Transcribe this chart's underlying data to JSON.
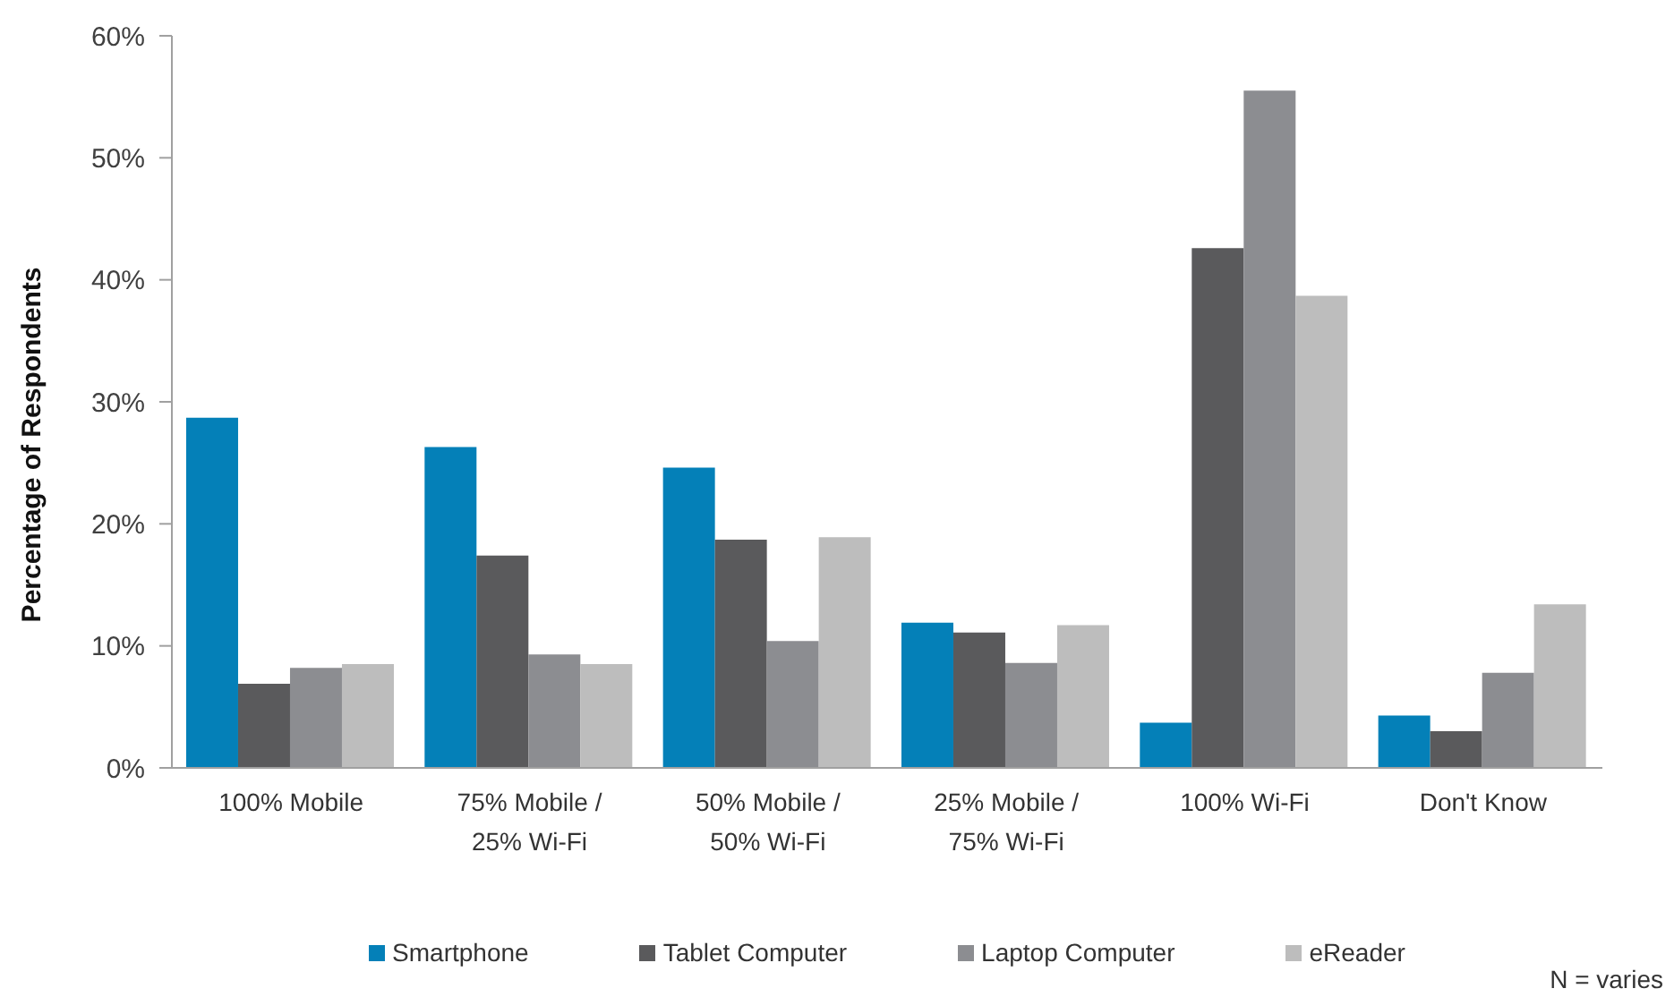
{
  "chart_data": {
    "type": "bar",
    "ylabel": "Percentage of Respondents",
    "categories": [
      "100% Mobile",
      "75% Mobile / 25% Wi-Fi",
      "50% Mobile / 50% Wi-Fi",
      "25% Mobile / 75% Wi-Fi",
      "100% Wi-Fi",
      "Don't Know"
    ],
    "series": [
      {
        "name": "Smartphone",
        "color": "#0480b8",
        "values": [
          28.7,
          26.3,
          24.6,
          11.9,
          3.7,
          4.3
        ]
      },
      {
        "name": "Tablet Computer",
        "color": "#5a5a5c",
        "values": [
          6.9,
          17.4,
          18.7,
          11.1,
          42.6,
          3.0
        ]
      },
      {
        "name": "Laptop Computer",
        "color": "#8c8d91",
        "values": [
          8.2,
          9.3,
          10.4,
          8.6,
          55.5,
          7.8
        ]
      },
      {
        "name": "eReader",
        "color": "#bdbdbd",
        "values": [
          8.5,
          8.5,
          18.9,
          11.7,
          38.7,
          13.4
        ]
      }
    ],
    "ylim": [
      0,
      60
    ],
    "yticks": [
      {
        "value": 0,
        "label": "0%"
      },
      {
        "value": 10,
        "label": "10%"
      },
      {
        "value": 20,
        "label": "20%"
      },
      {
        "value": 30,
        "label": "30%"
      },
      {
        "value": 40,
        "label": "40%"
      },
      {
        "value": 50,
        "label": "50%"
      },
      {
        "value": 60,
        "label": "60%"
      }
    ],
    "legend": "bottom",
    "annotations": [
      "N = varies"
    ]
  }
}
